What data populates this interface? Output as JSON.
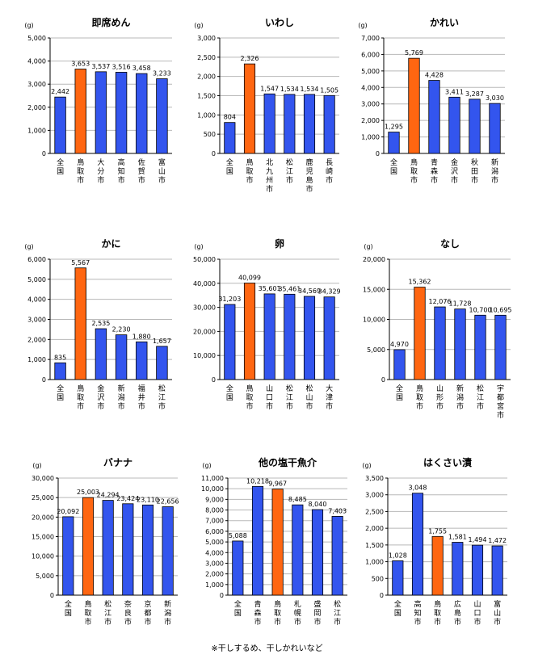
{
  "footnote": "※干しするめ、干しかれいなど",
  "colors": {
    "bar": "#3355ee",
    "highlight": "#ff6611",
    "grid": "#b8b8b8",
    "edge": "#000000"
  },
  "chart_data": [
    {
      "type": "bar",
      "title": "即席めん",
      "unit": "(g)",
      "ylim": [
        0,
        5000
      ],
      "yticks": [
        "0",
        "1,000",
        "2,000",
        "3,000",
        "4,000",
        "5,000"
      ],
      "categories": [
        "全国",
        "鳥取市",
        "大分市",
        "高知市",
        "佐賀市",
        "富山市"
      ],
      "values": [
        2442,
        3653,
        3537,
        3516,
        3458,
        3233
      ],
      "labels": [
        "2,442",
        "3,653",
        "3,537",
        "3,516",
        "3,458",
        "3,233"
      ],
      "highlight": 1
    },
    {
      "type": "bar",
      "title": "いわし",
      "unit": "(g)",
      "ylim": [
        0,
        3000
      ],
      "yticks": [
        "0",
        "500",
        "1,000",
        "1,500",
        "2,000",
        "2,500",
        "3,000"
      ],
      "categories": [
        "全国",
        "鳥取市",
        "北九州市",
        "松江市",
        "鹿児島市",
        "長崎市"
      ],
      "values": [
        804,
        2326,
        1547,
        1534,
        1534,
        1505
      ],
      "labels": [
        "804",
        "2,326",
        "1,547",
        "1,534",
        "1,534",
        "1,505"
      ],
      "highlight": 1
    },
    {
      "type": "bar",
      "title": "かれい",
      "unit": "(g)",
      "ylim": [
        0,
        7000
      ],
      "yticks": [
        "0",
        "1,000",
        "2,000",
        "3,000",
        "4,000",
        "5,000",
        "6,000",
        "7,000"
      ],
      "categories": [
        "全国",
        "鳥取市",
        "青森市",
        "金沢市",
        "秋田市",
        "新潟市"
      ],
      "values": [
        1295,
        5769,
        4428,
        3411,
        3287,
        3030
      ],
      "labels": [
        "1,295",
        "5,769",
        "4,428",
        "3,411",
        "3,287",
        "3,030"
      ],
      "highlight": 1
    },
    {
      "type": "bar",
      "title": "かに",
      "unit": "(g)",
      "ylim": [
        0,
        6000
      ],
      "yticks": [
        "0",
        "1,000",
        "2,000",
        "3,000",
        "4,000",
        "5,000",
        "6,000"
      ],
      "categories": [
        "全国",
        "鳥取市",
        "金沢市",
        "新潟市",
        "福井市",
        "松江市"
      ],
      "values": [
        835,
        5567,
        2535,
        2230,
        1880,
        1657
      ],
      "labels": [
        "835",
        "5,567",
        "2,535",
        "2,230",
        "1,880",
        "1,657"
      ],
      "highlight": 1
    },
    {
      "type": "bar",
      "title": "卵",
      "unit": "(g)",
      "ylim": [
        0,
        50000
      ],
      "yticks": [
        "0",
        "10,000",
        "20,000",
        "30,000",
        "40,000",
        "50,000"
      ],
      "categories": [
        "全国",
        "鳥取市",
        "山口市",
        "松江市",
        "松山市",
        "大津市"
      ],
      "values": [
        31203,
        40099,
        35601,
        35461,
        34569,
        34329
      ],
      "labels": [
        "31,203",
        "40,099",
        "35,601",
        "35,461",
        "34,569",
        "34,329"
      ],
      "highlight": 1
    },
    {
      "type": "bar",
      "title": "なし",
      "unit": "(g)",
      "ylim": [
        0,
        20000
      ],
      "yticks": [
        "0",
        "5,000",
        "10,000",
        "15,000",
        "20,000"
      ],
      "categories": [
        "全国",
        "鳥取市",
        "山形市",
        "新潟市",
        "松江市",
        "宇都宮市"
      ],
      "values": [
        4970,
        15362,
        12076,
        11728,
        10700,
        10695
      ],
      "labels": [
        "4,970",
        "15,362",
        "12,076",
        "11,728",
        "10,700",
        "10,695"
      ],
      "highlight": 1
    },
    {
      "type": "bar",
      "title": "バナナ",
      "unit": "(g)",
      "ylim": [
        0,
        30000
      ],
      "yticks": [
        "0",
        "5,000",
        "10,000",
        "15,000",
        "20,000",
        "25,000",
        "30,000"
      ],
      "categories": [
        "全国",
        "鳥取市",
        "松江市",
        "奈良市",
        "京都市",
        "新潟市"
      ],
      "values": [
        20092,
        25003,
        24294,
        23424,
        23110,
        22656
      ],
      "labels": [
        "20,092",
        "25,003",
        "24,294",
        "23,424",
        "23,110",
        "22,656"
      ],
      "highlight": 1
    },
    {
      "type": "bar",
      "title": "他の塩干魚介",
      "unit": "(g)",
      "ylim": [
        0,
        11000
      ],
      "yticks": [
        "0",
        "1,000",
        "2,000",
        "3,000",
        "4,000",
        "5,000",
        "6,000",
        "7,000",
        "8,000",
        "9,000",
        "10,000",
        "11,000"
      ],
      "categories": [
        "全国",
        "青森市",
        "鳥取市",
        "札幌市",
        "盛岡市",
        "松江市"
      ],
      "values": [
        5088,
        10218,
        9967,
        8485,
        8040,
        7403
      ],
      "labels": [
        "5,088",
        "10,218",
        "9,967",
        "8,485",
        "8,040",
        "7,403"
      ],
      "highlight": 2
    },
    {
      "type": "bar",
      "title": "はくさい漬",
      "unit": "(g)",
      "ylim": [
        0,
        3500
      ],
      "yticks": [
        "0",
        "500",
        "1,000",
        "1,500",
        "2,000",
        "2,500",
        "3,000",
        "3,500"
      ],
      "categories": [
        "全国",
        "高知市",
        "鳥取市",
        "広島市",
        "山口市",
        "富山市"
      ],
      "values": [
        1028,
        3048,
        1755,
        1581,
        1494,
        1472
      ],
      "labels": [
        "1,028",
        "3,048",
        "1,755",
        "1,581",
        "1,494",
        "1,472"
      ],
      "highlight": 2
    }
  ]
}
